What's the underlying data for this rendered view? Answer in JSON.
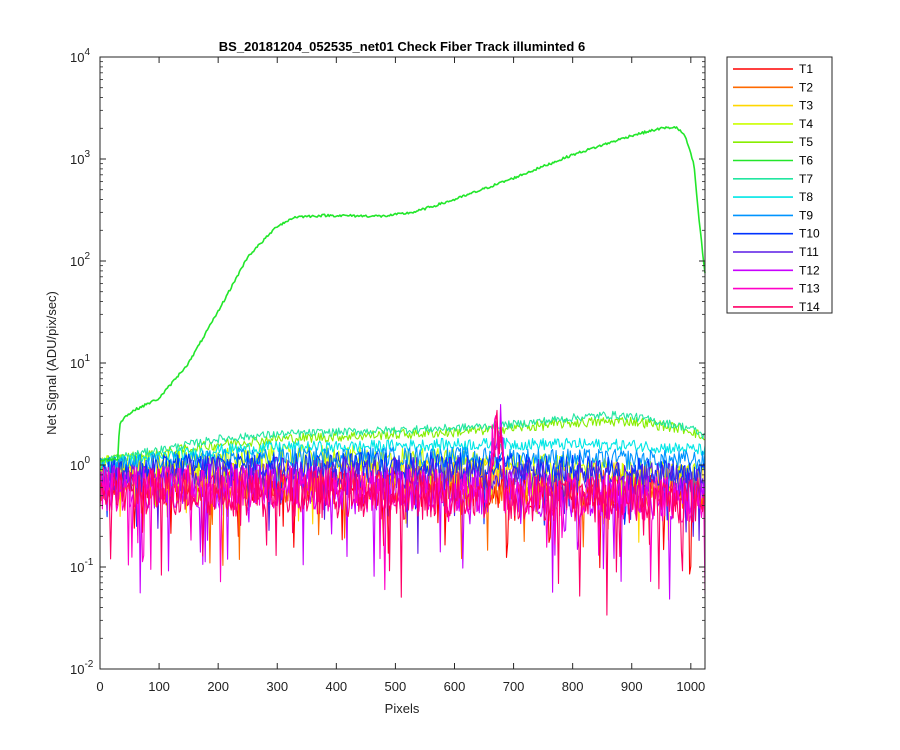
{
  "chart_data": {
    "type": "line",
    "title": "BS_20181204_052535_net01    Check Fiber      Track illuminted 6",
    "xlabel": "Pixels",
    "ylabel": "Net Signal (ADU/pix/sec)",
    "xlim": [
      0,
      1024
    ],
    "ylim": [
      0.01,
      10000
    ],
    "y_scale": "log",
    "grid": false,
    "legend_position": "outside-right",
    "x_ticks": [
      0,
      100,
      200,
      300,
      400,
      500,
      600,
      700,
      800,
      900,
      1000
    ],
    "y_ticks": [
      {
        "value": 0.01,
        "base": "10",
        "exp": "-2"
      },
      {
        "value": 0.1,
        "base": "10",
        "exp": "-1"
      },
      {
        "value": 1,
        "base": "10",
        "exp": "0"
      },
      {
        "value": 10,
        "base": "10",
        "exp": "1"
      },
      {
        "value": 100,
        "base": "10",
        "exp": "2"
      },
      {
        "value": 1000,
        "base": "10",
        "exp": "3"
      },
      {
        "value": 10000,
        "base": "10",
        "exp": "4"
      }
    ],
    "series": [
      {
        "name": "T1",
        "color": "#ff0000",
        "x": [
          0,
          200,
          400,
          600,
          800,
          1024
        ],
        "y": [
          0.62,
          0.6,
          0.6,
          0.58,
          0.55,
          0.52
        ]
      },
      {
        "name": "T2",
        "color": "#ff6a00",
        "x": [
          0,
          200,
          400,
          600,
          800,
          1024
        ],
        "y": [
          0.68,
          0.66,
          0.65,
          0.63,
          0.6,
          0.55
        ]
      },
      {
        "name": "T3",
        "color": "#ffd700",
        "x": [
          0,
          200,
          400,
          600,
          800,
          1024
        ],
        "y": [
          0.8,
          0.85,
          0.88,
          0.85,
          0.8,
          0.72
        ]
      },
      {
        "name": "T4",
        "color": "#ccff00",
        "x": [
          0,
          100,
          200,
          300,
          400,
          500,
          600,
          700,
          800,
          900,
          1024
        ],
        "y": [
          0.95,
          1.05,
          1.15,
          1.2,
          1.2,
          1.15,
          1.1,
          1.0,
          0.95,
          0.85,
          0.8
        ]
      },
      {
        "name": "T5",
        "color": "#88ee00",
        "x": [
          0,
          100,
          200,
          300,
          400,
          500,
          600,
          700,
          800,
          900,
          1000,
          1024
        ],
        "y": [
          1.1,
          1.3,
          1.6,
          1.8,
          1.9,
          2.0,
          2.1,
          2.3,
          2.6,
          2.7,
          2.2,
          1.8
        ]
      },
      {
        "name": "T6",
        "color": "#22e62a",
        "x": [
          0,
          30,
          33,
          40,
          60,
          100,
          150,
          200,
          250,
          300,
          330,
          380,
          480,
          530,
          600,
          700,
          800,
          900,
          950,
          975,
          990,
          1005,
          1015,
          1024
        ],
        "y": [
          1.1,
          1.15,
          2.5,
          2.9,
          3.5,
          4.5,
          10,
          32,
          110,
          220,
          270,
          280,
          275,
          300,
          400,
          650,
          1100,
          1700,
          2000,
          2050,
          1700,
          900,
          220,
          75
        ]
      },
      {
        "name": "T7",
        "color": "#22e6a0",
        "x": [
          0,
          100,
          200,
          300,
          400,
          500,
          600,
          700,
          800,
          860,
          900,
          1000,
          1024
        ],
        "y": [
          1.1,
          1.4,
          1.8,
          2.0,
          2.1,
          2.2,
          2.3,
          2.5,
          2.9,
          3.1,
          3.0,
          2.3,
          1.9
        ]
      },
      {
        "name": "T8",
        "color": "#00e6e6",
        "x": [
          0,
          100,
          200,
          300,
          400,
          500,
          600,
          700,
          800,
          900,
          1024
        ],
        "y": [
          1.0,
          1.2,
          1.4,
          1.5,
          1.5,
          1.55,
          1.6,
          1.6,
          1.6,
          1.55,
          1.4
        ]
      },
      {
        "name": "T9",
        "color": "#0094ff",
        "x": [
          0,
          200,
          400,
          600,
          800,
          1024
        ],
        "y": [
          0.95,
          1.15,
          1.2,
          1.2,
          1.15,
          1.1
        ]
      },
      {
        "name": "T10",
        "color": "#0033ff",
        "x": [
          0,
          200,
          400,
          600,
          800,
          1024
        ],
        "y": [
          0.85,
          0.98,
          1.0,
          0.98,
          0.92,
          0.8
        ]
      },
      {
        "name": "T11",
        "color": "#5a1ae6",
        "x": [
          0,
          200,
          400,
          600,
          800,
          1024
        ],
        "y": [
          0.75,
          0.82,
          0.85,
          0.82,
          0.78,
          0.7
        ]
      },
      {
        "name": "T12",
        "color": "#c800ff",
        "x": [
          0,
          200,
          400,
          600,
          800,
          1024
        ],
        "y": [
          0.6,
          0.62,
          0.6,
          0.55,
          0.5,
          0.45
        ]
      },
      {
        "name": "T13",
        "color": "#ff00c8",
        "x": [
          0,
          200,
          400,
          600,
          800,
          1024
        ],
        "y": [
          0.58,
          0.6,
          0.58,
          0.55,
          0.5,
          0.45
        ]
      },
      {
        "name": "T14",
        "color": "#ff0066",
        "x": [
          0,
          200,
          400,
          600,
          800,
          1024
        ],
        "y": [
          0.55,
          0.55,
          0.52,
          0.5,
          0.48,
          0.45
        ]
      }
    ]
  }
}
